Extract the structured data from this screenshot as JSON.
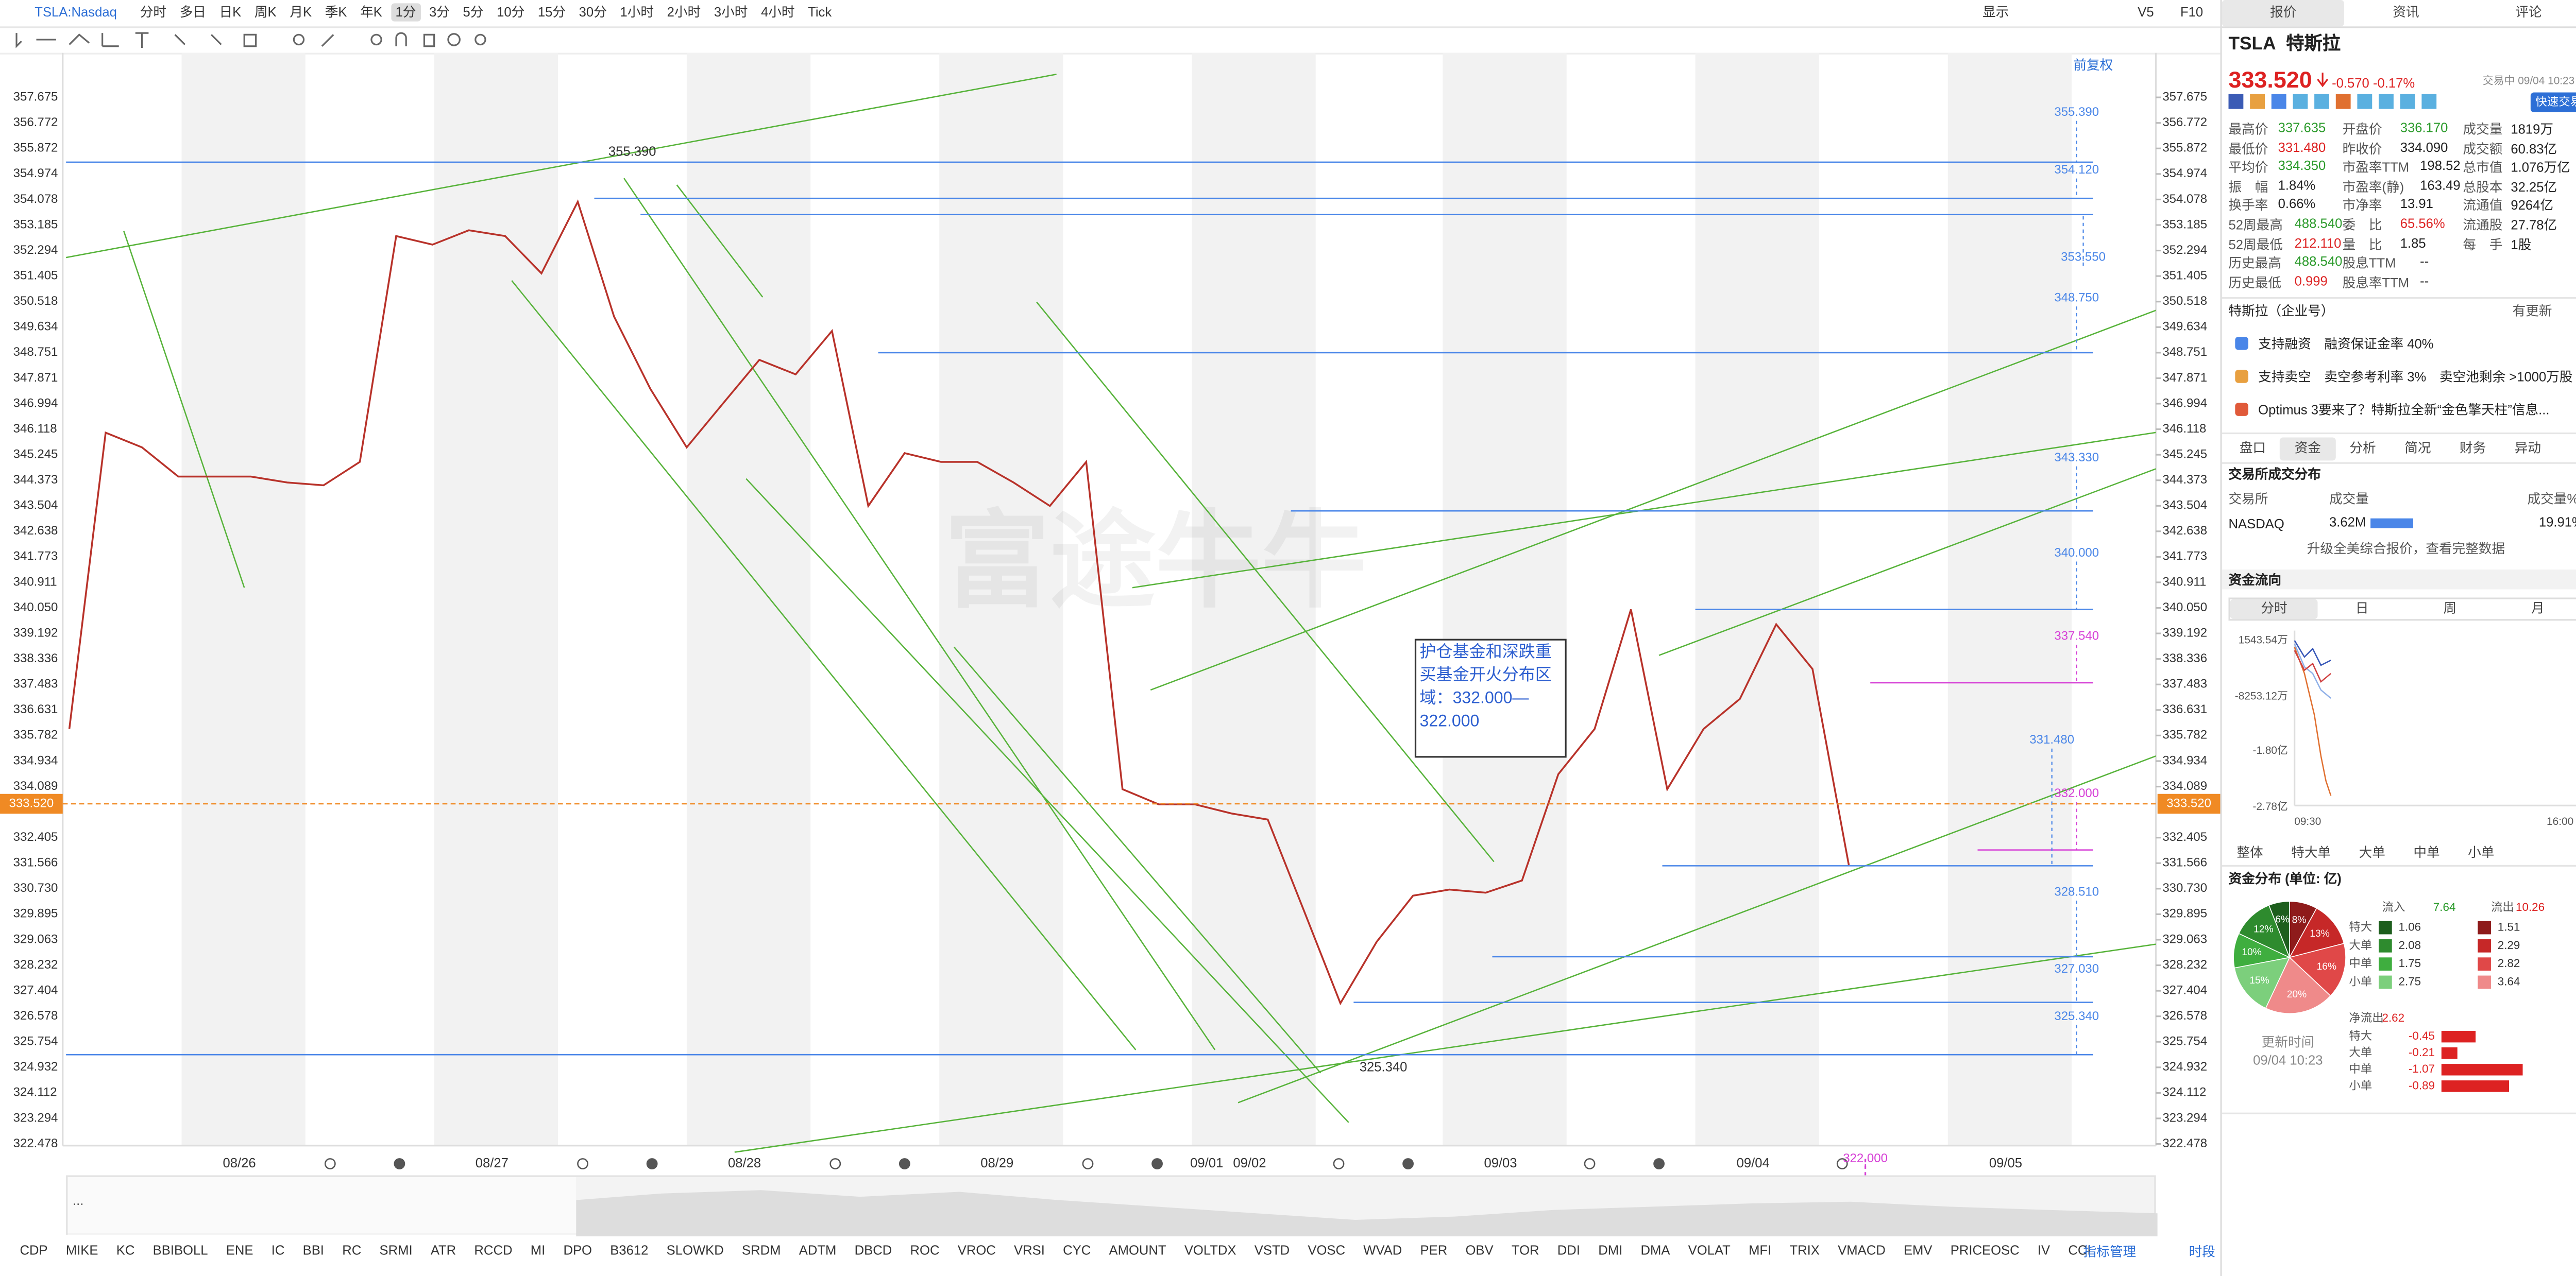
{
  "toolbar": {
    "symbol": "TSLA:Nasdaq",
    "periods": [
      "分时",
      "多日",
      "日K",
      "周K",
      "月K",
      "季K",
      "年K",
      "1分",
      "3分",
      "5分",
      "10分",
      "15分",
      "30分",
      "1小时",
      "2小时",
      "3小时",
      "4小时",
      "Tick"
    ],
    "active_period": 7,
    "right": [
      "显示",
      "V5",
      "F10"
    ]
  },
  "chart_data": {
    "type": "line",
    "log_scale": true,
    "color": "#b8322a",
    "watermark": "富途牛牛",
    "adjust": "前复权",
    "values": [
      336,
      346,
      345.5,
      344.5,
      344.5,
      344.5,
      344.3,
      344.2,
      345,
      352.8,
      352.5,
      353,
      352.8,
      351.5,
      354,
      350,
      347.5,
      345.5,
      347,
      348.5,
      348,
      349.5,
      343.5,
      345.3,
      345,
      345,
      344.3,
      343.5,
      345,
      334,
      333.5,
      333.5,
      333.2,
      333,
      330,
      327,
      329,
      330.5,
      330.7,
      330.6,
      331,
      334.5,
      336,
      340,
      334,
      336,
      337,
      339.5,
      338,
      331.5
    ],
    "ylim": [
      322.478,
      357.675
    ],
    "yticks": [
      {
        "value": 357.675,
        "label": "357.675"
      },
      {
        "value": 356.772,
        "label": "356.772"
      },
      {
        "value": 355.872,
        "label": "355.872"
      },
      {
        "value": 354.974,
        "label": "354.974"
      },
      {
        "value": 354.078,
        "label": "354.078"
      },
      {
        "value": 353.185,
        "label": "353.185"
      },
      {
        "value": 352.294,
        "label": "352.294"
      },
      {
        "value": 351.405,
        "label": "351.405"
      },
      {
        "value": 350.518,
        "label": "350.518"
      },
      {
        "value": 349.634,
        "label": "349.634"
      },
      {
        "value": 348.751,
        "label": "348.751"
      },
      {
        "value": 347.871,
        "label": "347.871"
      },
      {
        "value": 346.994,
        "label": "346.994"
      },
      {
        "value": 346.118,
        "label": "346.118"
      },
      {
        "value": 345.245,
        "label": "345.245"
      },
      {
        "value": 344.373,
        "label": "344.373"
      },
      {
        "value": 343.504,
        "label": "343.504"
      },
      {
        "value": 342.638,
        "label": "342.638"
      },
      {
        "value": 341.773,
        "label": "341.773"
      },
      {
        "value": 340.911,
        "label": "340.911"
      },
      {
        "value": 340.05,
        "label": "340.050"
      },
      {
        "value": 339.192,
        "label": "339.192"
      },
      {
        "value": 338.336,
        "label": "338.336"
      },
      {
        "value": 337.483,
        "label": "337.483"
      },
      {
        "value": 336.631,
        "label": "336.631"
      },
      {
        "value": 335.782,
        "label": "335.782"
      },
      {
        "value": 334.934,
        "label": "334.934"
      },
      {
        "value": 334.089,
        "label": "334.089"
      },
      {
        "value": 332.405,
        "label": "332.405"
      },
      {
        "value": 331.566,
        "label": "331.566"
      },
      {
        "value": 330.73,
        "label": "330.730"
      },
      {
        "value": 329.895,
        "label": "329.895"
      },
      {
        "value": 329.063,
        "label": "329.063"
      },
      {
        "value": 328.232,
        "label": "328.232"
      },
      {
        "value": 327.404,
        "label": "327.404"
      },
      {
        "value": 326.578,
        "label": "326.578"
      },
      {
        "value": 325.754,
        "label": "325.754"
      },
      {
        "value": 324.932,
        "label": "324.932"
      },
      {
        "value": 324.112,
        "label": "324.112"
      },
      {
        "value": 323.294,
        "label": "323.294"
      },
      {
        "value": 322.478,
        "label": "322.478"
      }
    ],
    "current_price": {
      "value": 333.52,
      "label": "333.520"
    },
    "x_labels": [
      "08/26",
      "08/27",
      "08/28",
      "08/29",
      "09/01",
      "09/02",
      "09/03",
      "09/04",
      "09/05"
    ],
    "annotations": [
      {
        "value": 355.39,
        "label": "355.390"
      },
      {
        "value": 325.34,
        "label": "325.340"
      }
    ],
    "levels": [
      {
        "value": 355.39,
        "label": "355.390",
        "color": "#4a86e8"
      },
      {
        "value": 354.12,
        "label": "354.120",
        "color": "#4a86e8"
      },
      {
        "value": 353.55,
        "label": "353.550",
        "color": "#4a86e8"
      },
      {
        "value": 348.75,
        "label": "348.750",
        "color": "#4a86e8"
      },
      {
        "value": 343.33,
        "label": "343.330",
        "color": "#4a86e8"
      },
      {
        "value": 340.0,
        "label": "340.000",
        "color": "#4a86e8"
      },
      {
        "value": 337.54,
        "label": "337.540",
        "color": "#d63fd6"
      },
      {
        "value": 332.0,
        "label": "332.000",
        "color": "#d63fd6"
      },
      {
        "value": 331.48,
        "label": "331.480",
        "color": "#4a86e8"
      },
      {
        "value": 328.51,
        "label": "328.510",
        "color": "#4a86e8"
      },
      {
        "value": 327.03,
        "label": "327.030",
        "color": "#4a86e8"
      },
      {
        "value": 325.34,
        "label": "325.340",
        "color": "#4a86e8"
      },
      {
        "value": 322.0,
        "label": "322.000",
        "color": "#d63fd6"
      }
    ],
    "note": "护仓基金和深跌重买基金开火分布区域：332.000—322.000"
  },
  "navigator": {
    "ellipsis": "..."
  },
  "indicators": {
    "items": [
      "CDP",
      "MIKE",
      "KC",
      "BBIBOLL",
      "ENE",
      "IC",
      "BBI",
      "RC",
      "SRMI",
      "ATR",
      "RCCD",
      "MI",
      "DPO",
      "B3612",
      "SLOWKD",
      "SRDM",
      "ADTM",
      "DBCD",
      "ROC",
      "VROC",
      "VRSI",
      "CYC",
      "AMOUNT",
      "VOLTDX",
      "VSTD",
      "VOSC",
      "WVAD",
      "PER",
      "OBV",
      "TOR",
      "DDI",
      "DMI",
      "DMA",
      "VOLAT",
      "MFI",
      "TRIX",
      "VMACD",
      "EMV",
      "PRICEOSC",
      "IV",
      "CCI"
    ],
    "manage": "指标管理",
    "session": "时段"
  },
  "quote": {
    "tabs": [
      "报价",
      "资讯",
      "评论"
    ],
    "code": "TSLA",
    "name": "特斯拉",
    "price": "333.520",
    "change": "-0.570",
    "change_pct": "-0.17%",
    "status": "交易中 09/04 10:23",
    "fast_trade": "快速交易",
    "stats": [
      [
        [
          "最高价",
          "337.635"
        ],
        [
          "开盘价",
          "336.170"
        ],
        [
          "成交量",
          "1819万"
        ]
      ],
      [
        [
          "最低价",
          "331.480"
        ],
        [
          "昨收价",
          "334.090"
        ],
        [
          "成交额",
          "60.83亿"
        ]
      ],
      [
        [
          "平均价",
          "334.350"
        ],
        [
          "市盈率TTM",
          "198.52"
        ],
        [
          "总市值",
          "1.076万亿"
        ]
      ],
      [
        [
          "振　幅",
          "1.84%"
        ],
        [
          "市盈率(静)",
          "163.49"
        ],
        [
          "总股本",
          "32.25亿"
        ]
      ],
      [
        [
          "换手率",
          "0.66%"
        ],
        [
          "市净率",
          "13.91"
        ],
        [
          "流通值",
          "9264亿"
        ]
      ],
      [
        [
          "52周最高",
          "488.540"
        ],
        [
          "委　比",
          "65.56%"
        ],
        [
          "流通股",
          "27.78亿"
        ]
      ],
      [
        [
          "52周最低",
          "212.110"
        ],
        [
          "量　比",
          "1.85"
        ],
        [
          "每　手",
          "1股"
        ]
      ],
      [
        [
          "历史最高",
          "488.540"
        ],
        [
          "股息TTM",
          "--"
        ]
      ],
      [
        [
          "历史最低",
          "0.999"
        ],
        [
          "股息率TTM",
          "--"
        ]
      ]
    ]
  },
  "news": {
    "account": "特斯拉（企业号）",
    "update": "有更新",
    "items": [
      "支持融资　融资保证金率 40%",
      "支持卖空　卖空参考利率 3%　卖空池剩余 >1000万股",
      "Optimus 3要来了？特斯拉全新“金色擎天柱”信息..."
    ]
  },
  "fund": {
    "tabs": [
      "盘口",
      "资金",
      "分析",
      "简况",
      "财务",
      "异动"
    ],
    "active_tab": 1,
    "exchange_title": "交易所成交分布",
    "exchange_header": [
      "交易所",
      "成交量",
      "成交量%"
    ],
    "exchange_name": "NASDAQ",
    "exchange_volume": "3.62M",
    "exchange_pct": {
      "value": 19.91,
      "label": "19.91%"
    },
    "upgrade": "升级全美综合报价，查看完整数据",
    "flow_title": "资金流向",
    "flow_tabs": [
      "分时",
      "日",
      "周",
      "月"
    ],
    "flow_yticks": [
      "1543.54万",
      "-8253.12万",
      "-1.80亿",
      "-2.78亿"
    ],
    "flow_x": [
      "09:30",
      "16:00"
    ],
    "flow_legend": [
      "整体",
      "特大单",
      "大单",
      "中单",
      "小单"
    ],
    "dist_title": "资金分布 (单位: 亿)",
    "pie": {
      "values": [
        8,
        13,
        16,
        20,
        15,
        10,
        12,
        6
      ],
      "value_labels": [
        "8%",
        "13%",
        "16%",
        "20%",
        "15%",
        "10%",
        "12%",
        "6%"
      ],
      "colors": [
        "#8e1b1b",
        "#c62828",
        "#e04848",
        "#ef8a8a",
        "#7ccf7c",
        "#3fae3f",
        "#2e8b2e",
        "#1d5e1d"
      ]
    },
    "inflow_label": "流入",
    "inflow_total": 7.64,
    "outflow_label": "流出",
    "outflow_total": 10.26,
    "rows": [
      "特大",
      "大单",
      "中单",
      "小单"
    ],
    "inflow": [
      1.06,
      2.08,
      1.75,
      2.75
    ],
    "outflow": [
      1.51,
      2.29,
      2.82,
      3.64
    ],
    "net_label": "净流出",
    "net_total": 2.62,
    "net": [
      -0.45,
      -0.21,
      -1.07,
      -0.89
    ],
    "updated_label": "更新时间",
    "updated": "09/04 10:23"
  }
}
